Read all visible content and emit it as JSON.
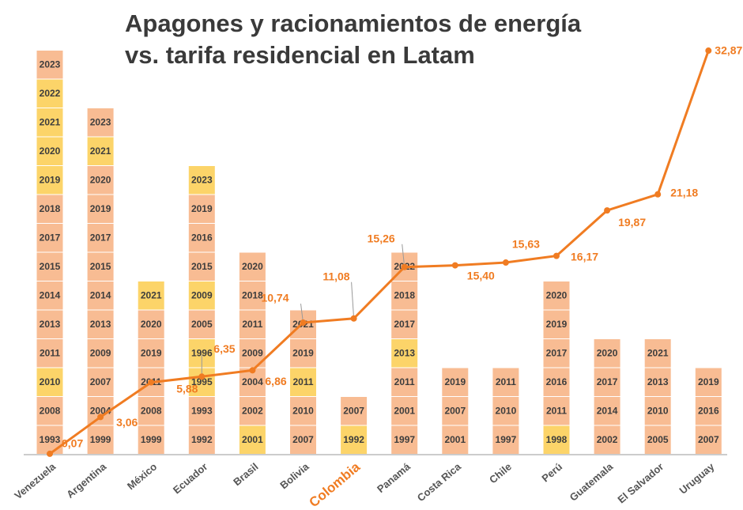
{
  "chart_data": {
    "type": "line",
    "title": [
      "Apagones y racionamientos de energía",
      "vs. tarifa residencial en Latam"
    ],
    "categories": [
      "Venezuela",
      "Argentina",
      "México",
      "Ecuador",
      "Brasil",
      "Bolivia",
      "Colombia",
      "Panamá",
      "Costa Rica",
      "Chile",
      "Perú",
      "Guatemala",
      "El Salvador",
      "Uruguay"
    ],
    "highlight_index": 6,
    "highlight_color": "#f07c22",
    "values": [
      0.07,
      3.06,
      5.88,
      6.35,
      6.86,
      10.74,
      11.08,
      15.26,
      15.4,
      15.63,
      16.17,
      19.87,
      21.18,
      32.87
    ],
    "value_labels": [
      "0,07",
      "3,06",
      "5,88",
      "6,35",
      "6,86",
      "10,74",
      "11,08",
      "15,26",
      "15,40",
      "15,63",
      "16,17",
      "19,87",
      "21,18",
      "32,87"
    ],
    "color": "#f07c22",
    "ylim": [
      0,
      33
    ],
    "block_colors": {
      "normal": "#f8bc93",
      "highlight": "#fcd469"
    },
    "blocks": [
      [
        [
          "1993",
          0
        ],
        [
          "2008",
          0
        ],
        [
          "2010",
          1
        ],
        [
          "2011",
          0
        ],
        [
          "2013",
          0
        ],
        [
          "2014",
          0
        ],
        [
          "2015",
          0
        ],
        [
          "2017",
          0
        ],
        [
          "2018",
          0
        ],
        [
          "2019",
          1
        ],
        [
          "2020",
          1
        ],
        [
          "2021",
          1
        ],
        [
          "2022",
          1
        ],
        [
          "2023",
          0
        ]
      ],
      [
        [
          "1999",
          0
        ],
        [
          "2004",
          0
        ],
        [
          "2007",
          0
        ],
        [
          "2009",
          0
        ],
        [
          "2013",
          0
        ],
        [
          "2014",
          0
        ],
        [
          "2015",
          0
        ],
        [
          "2017",
          0
        ],
        [
          "2019",
          0
        ],
        [
          "2020",
          0
        ],
        [
          "2021",
          1
        ],
        [
          "2023",
          0
        ]
      ],
      [
        [
          "1999",
          0
        ],
        [
          "2008",
          0
        ],
        [
          "2011",
          0
        ],
        [
          "2019",
          0
        ],
        [
          "2020",
          0
        ],
        [
          "2021",
          1
        ]
      ],
      [
        [
          "1992",
          0
        ],
        [
          "1993",
          0
        ],
        [
          "1995",
          1
        ],
        [
          "1996",
          1
        ],
        [
          "2005",
          0
        ],
        [
          "2009",
          1
        ],
        [
          "2015",
          0
        ],
        [
          "2016",
          0
        ],
        [
          "2019",
          0
        ],
        [
          "2023",
          1
        ]
      ],
      [
        [
          "2001",
          1
        ],
        [
          "2002",
          0
        ],
        [
          "2004",
          0
        ],
        [
          "2009",
          0
        ],
        [
          "2011",
          0
        ],
        [
          "2018",
          0
        ],
        [
          "2020",
          0
        ]
      ],
      [
        [
          "2007",
          0
        ],
        [
          "2010",
          0
        ],
        [
          "2011",
          1
        ],
        [
          "2019",
          0
        ],
        [
          "2021",
          0
        ]
      ],
      [
        [
          "1992",
          1
        ],
        [
          "2007",
          0
        ]
      ],
      [
        [
          "1997",
          0
        ],
        [
          "2001",
          0
        ],
        [
          "2011",
          0
        ],
        [
          "2013",
          1
        ],
        [
          "2017",
          0
        ],
        [
          "2018",
          0
        ],
        [
          "2022",
          0
        ]
      ],
      [
        [
          "2001",
          0
        ],
        [
          "2007",
          0
        ],
        [
          "2019",
          0
        ]
      ],
      [
        [
          "1997",
          0
        ],
        [
          "2010",
          0
        ],
        [
          "2011",
          0
        ]
      ],
      [
        [
          "1998",
          1
        ],
        [
          "2011",
          0
        ],
        [
          "2016",
          0
        ],
        [
          "2017",
          0
        ],
        [
          "2019",
          0
        ],
        [
          "2020",
          0
        ]
      ],
      [
        [
          "2002",
          0
        ],
        [
          "2014",
          0
        ],
        [
          "2017",
          0
        ],
        [
          "2020",
          0
        ]
      ],
      [
        [
          "2005",
          0
        ],
        [
          "2010",
          0
        ],
        [
          "2013",
          0
        ],
        [
          "2021",
          0
        ]
      ],
      [
        [
          "2007",
          0
        ],
        [
          "2016",
          0
        ],
        [
          "2019",
          0
        ]
      ]
    ]
  }
}
